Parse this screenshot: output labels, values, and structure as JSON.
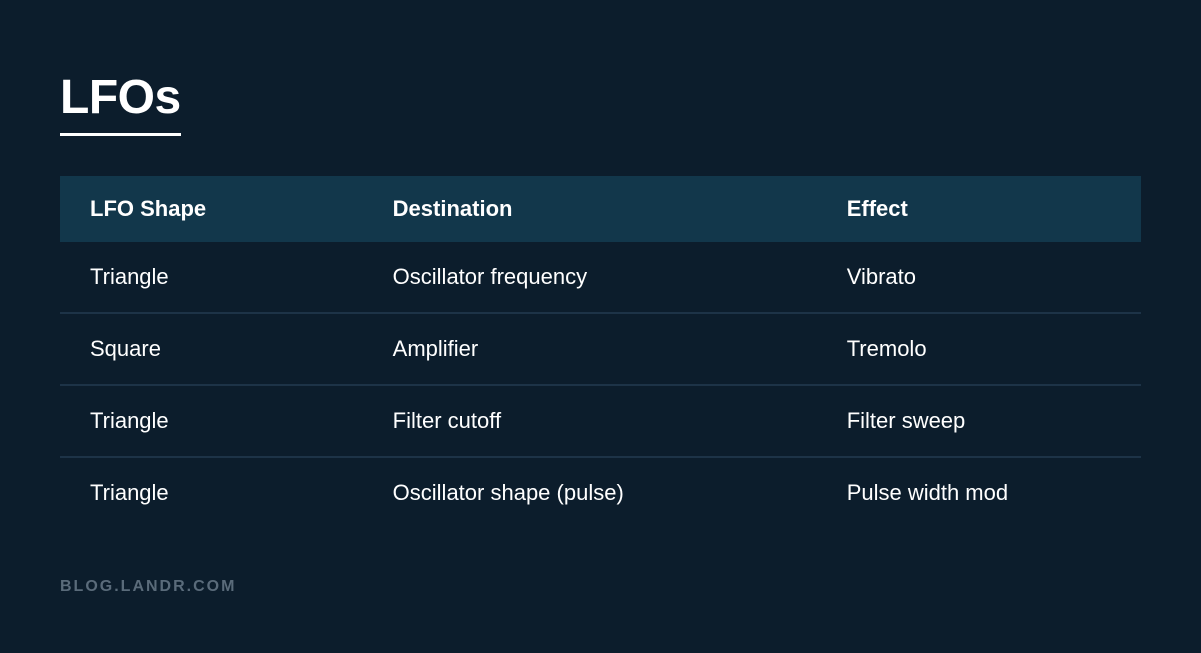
{
  "title": "LFOs",
  "table": {
    "columns": [
      "LFO Shape",
      "Destination",
      "Effect"
    ],
    "column_widths_pct": [
      28,
      42,
      30
    ],
    "rows": [
      [
        "Triangle",
        "Oscillator frequency",
        "Vibrato"
      ],
      [
        "Square",
        "Amplifier",
        "Tremolo"
      ],
      [
        "Triangle",
        "Filter cutoff",
        "Filter sweep"
      ],
      [
        "Triangle",
        "Oscillator shape (pulse)",
        "Pulse width mod"
      ]
    ]
  },
  "footer": "BLOG.LANDR.COM",
  "styling": {
    "background_color": "#0c1d2c",
    "header_row_color": "#12374b",
    "row_border_color": "#1d3347",
    "text_color": "#ffffff",
    "footer_text_color": "#5a6b7a",
    "title_fontsize": 48,
    "header_fontsize": 22,
    "cell_fontsize": 22,
    "footer_fontsize": 16,
    "title_underline_width": 3,
    "row_border_width": 2
  }
}
